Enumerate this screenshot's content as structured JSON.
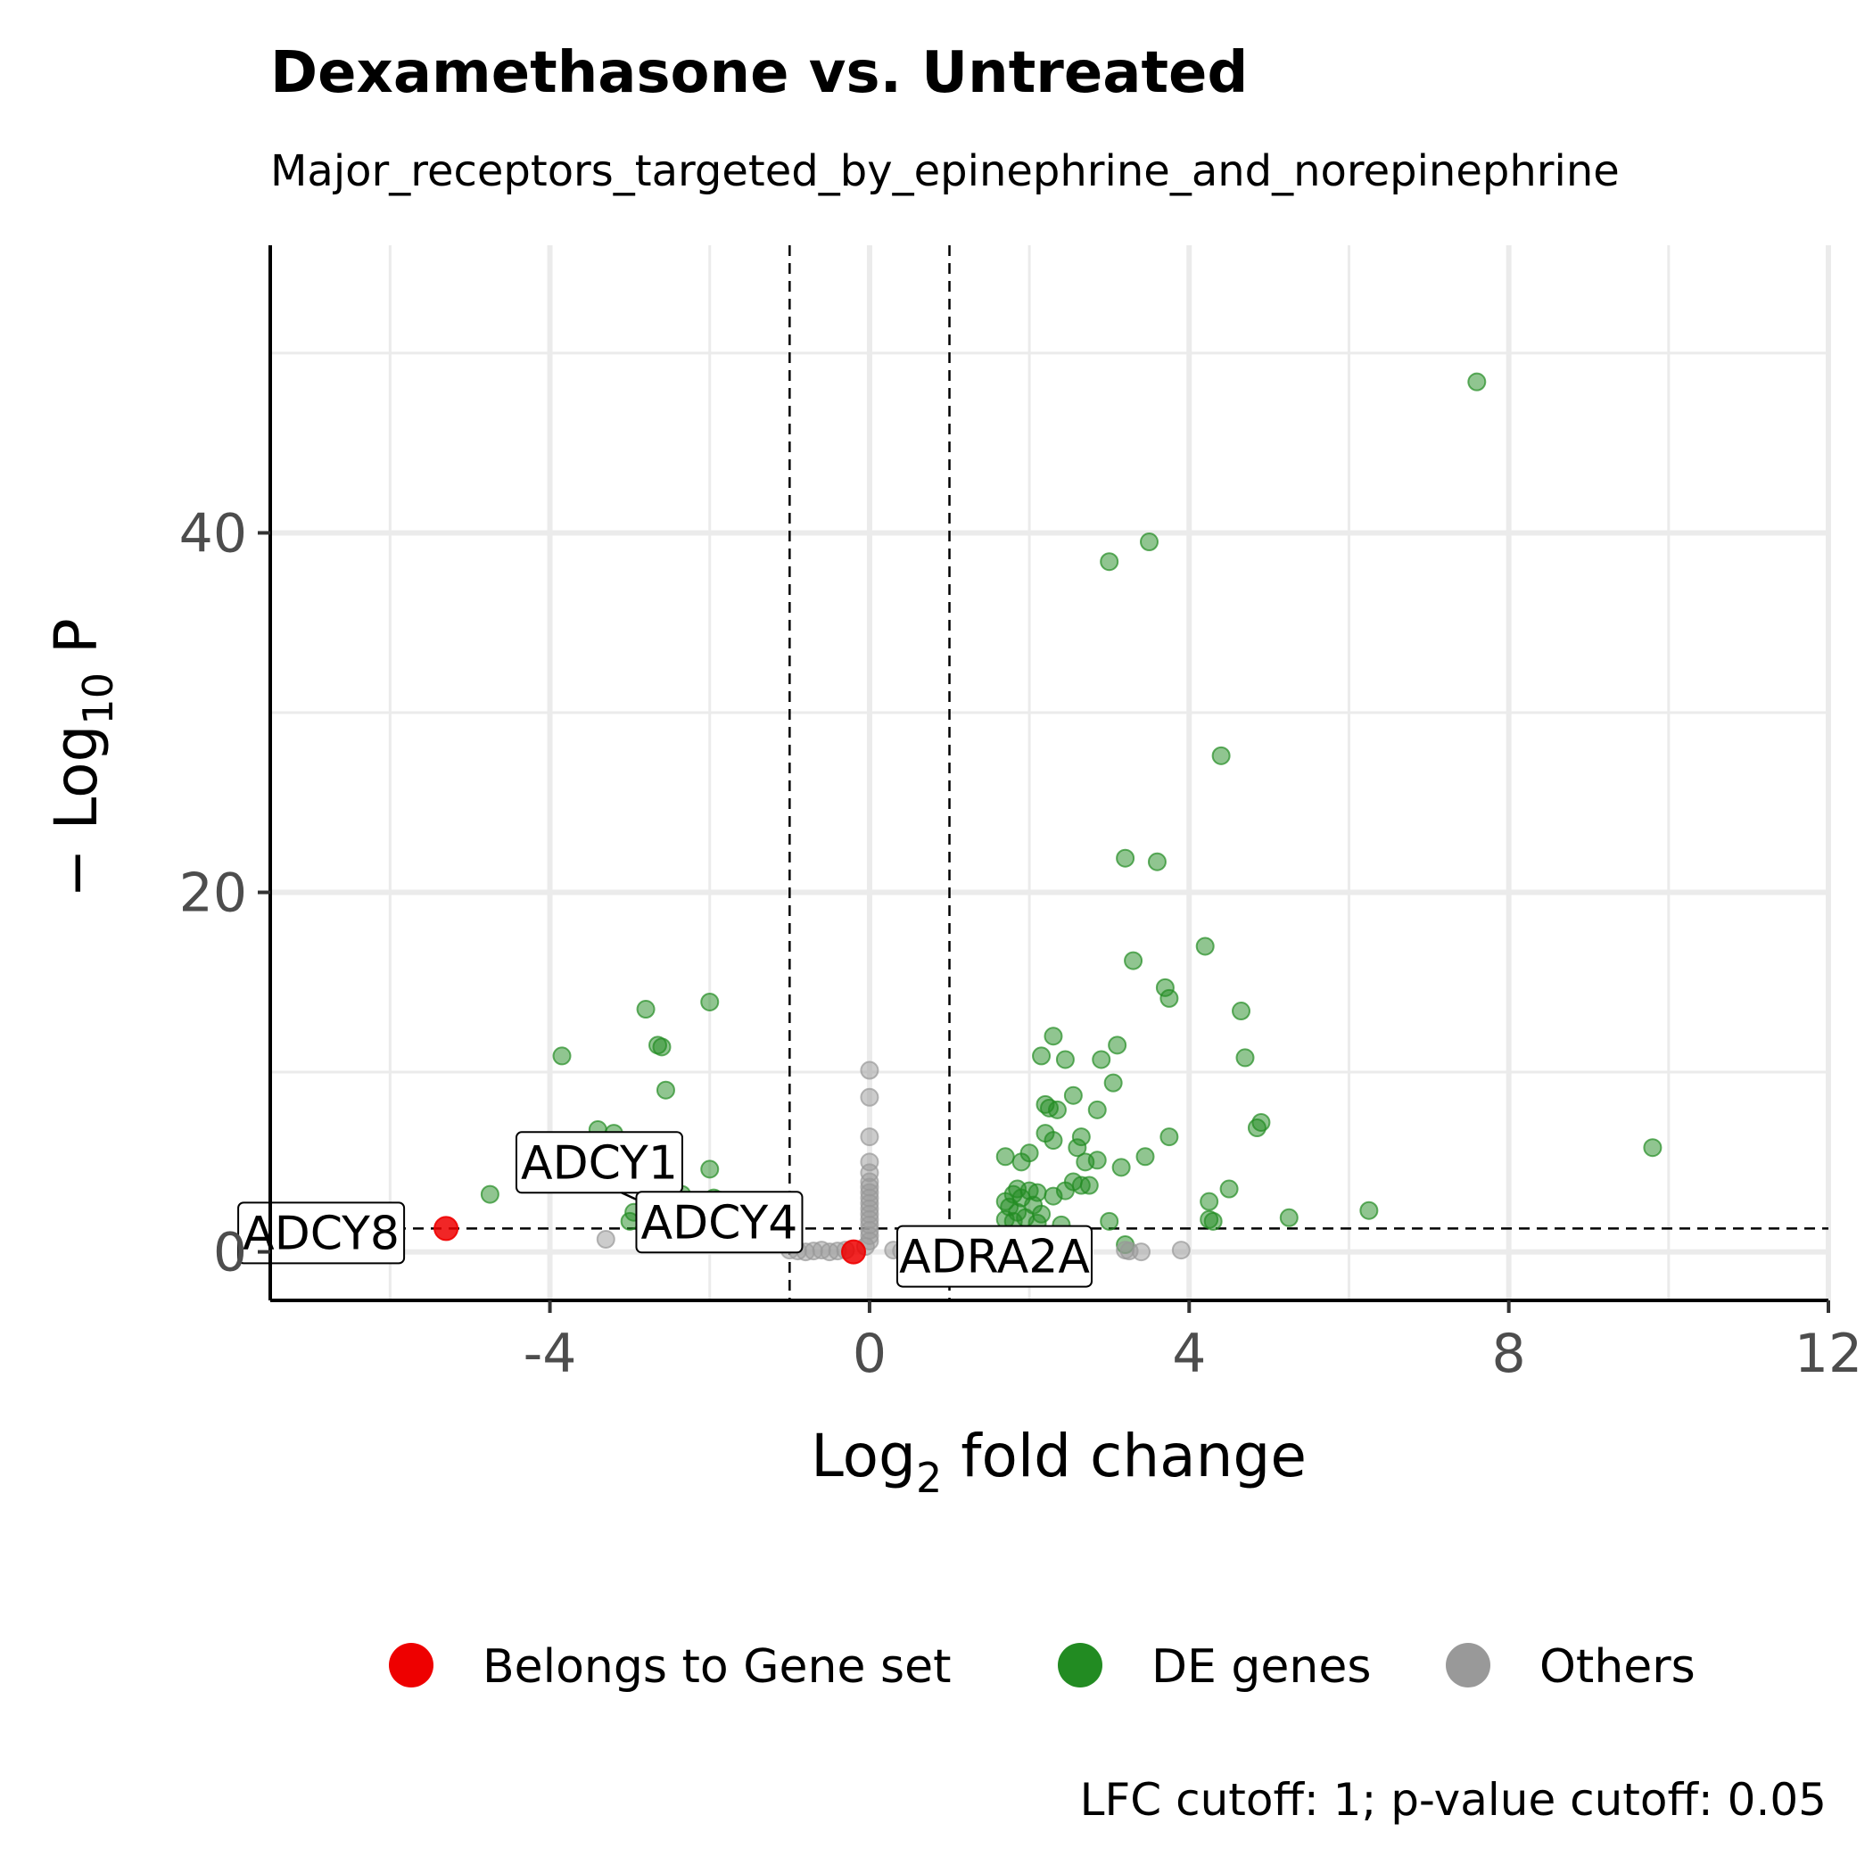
{
  "chart_data": {
    "type": "scatter",
    "title": "Dexamethasone vs. Untreated",
    "subtitle": "Major_receptors_targeted_by_epinephrine_and_norepinephrine",
    "xlabel_main": "Log",
    "xlabel_sub": "2",
    "xlabel_rest": " fold change",
    "ylabel_main": "− Log",
    "ylabel_sub": "10",
    "ylabel_rest": " P",
    "xlim": [
      -7.5,
      12
    ],
    "ylim": [
      -2.7,
      56
    ],
    "x_ticks": [
      -4,
      0,
      4,
      8,
      12
    ],
    "x_tick_labels": [
      "-4",
      "0",
      "4",
      "8",
      "12"
    ],
    "y_ticks": [
      0,
      20,
      40
    ],
    "y_tick_labels": [
      "0",
      "20",
      "40"
    ],
    "grid": true,
    "legend_position": "bottom",
    "lfc_cutoff": 1,
    "pvalue_cutoff": 0.05,
    "caption": "LFC cutoff: 1; p-value cutoff: 0.05",
    "colors": {
      "gene_set": "#ee0000",
      "de_genes": "#228b22",
      "others": "#999999",
      "grid": "#ebebeb",
      "axis": "#000000"
    },
    "legend": [
      {
        "key": "gene_set",
        "label": "Belongs to Gene set"
      },
      {
        "key": "de_genes",
        "label": "DE genes"
      },
      {
        "key": "others",
        "label": "Others"
      }
    ],
    "series": [
      {
        "key": "de_genes",
        "points": [
          [
            7.6,
            48.4
          ],
          [
            3.5,
            39.5
          ],
          [
            3.0,
            38.4
          ],
          [
            4.4,
            27.6
          ],
          [
            3.2,
            21.9
          ],
          [
            3.6,
            21.7
          ],
          [
            4.2,
            17.0
          ],
          [
            3.3,
            16.2
          ],
          [
            3.7,
            14.7
          ],
          [
            3.75,
            14.1
          ],
          [
            4.65,
            13.4
          ],
          [
            4.7,
            10.8
          ],
          [
            4.9,
            7.2
          ],
          [
            4.85,
            6.9
          ],
          [
            9.8,
            5.8
          ],
          [
            6.25,
            2.3
          ],
          [
            5.25,
            1.9
          ],
          [
            4.5,
            3.5
          ],
          [
            4.25,
            2.8
          ],
          [
            4.25,
            1.8
          ],
          [
            4.3,
            1.7
          ],
          [
            2.3,
            12.0
          ],
          [
            3.1,
            11.5
          ],
          [
            2.15,
            10.9
          ],
          [
            2.45,
            10.7
          ],
          [
            2.9,
            10.7
          ],
          [
            3.05,
            9.4
          ],
          [
            2.55,
            8.7
          ],
          [
            2.2,
            8.2
          ],
          [
            2.35,
            7.9
          ],
          [
            2.25,
            8.0
          ],
          [
            2.85,
            7.9
          ],
          [
            3.75,
            6.4
          ],
          [
            2.2,
            6.6
          ],
          [
            2.3,
            6.2
          ],
          [
            2.65,
            6.4
          ],
          [
            2.6,
            5.8
          ],
          [
            2.0,
            5.5
          ],
          [
            2.7,
            5.0
          ],
          [
            2.85,
            5.1
          ],
          [
            3.45,
            5.3
          ],
          [
            1.7,
            5.3
          ],
          [
            1.9,
            5.0
          ],
          [
            3.15,
            4.7
          ],
          [
            2.55,
            3.9
          ],
          [
            2.65,
            3.7
          ],
          [
            2.75,
            3.7
          ],
          [
            2.45,
            3.4
          ],
          [
            2.1,
            3.3
          ],
          [
            2.3,
            3.1
          ],
          [
            1.85,
            3.5
          ],
          [
            2.0,
            3.4
          ],
          [
            1.8,
            3.2
          ],
          [
            1.9,
            3.0
          ],
          [
            1.7,
            2.8
          ],
          [
            2.05,
            2.6
          ],
          [
            1.75,
            2.5
          ],
          [
            1.85,
            2.2
          ],
          [
            2.15,
            2.1
          ],
          [
            1.95,
            1.9
          ],
          [
            1.7,
            1.8
          ],
          [
            1.8,
            1.7
          ],
          [
            2.1,
            1.6
          ],
          [
            2.4,
            1.5
          ],
          [
            3.0,
            1.7
          ],
          [
            3.2,
            0.4
          ],
          [
            -2.0,
            13.9
          ],
          [
            -2.8,
            13.5
          ],
          [
            -2.65,
            11.5
          ],
          [
            -2.6,
            11.4
          ],
          [
            -3.85,
            10.9
          ],
          [
            -2.55,
            9.0
          ],
          [
            -3.4,
            6.8
          ],
          [
            -3.2,
            6.6
          ],
          [
            -2.0,
            4.6
          ],
          [
            -4.75,
            3.2
          ],
          [
            -1.95,
            3.0
          ],
          [
            -1.9,
            2.9
          ],
          [
            -1.75,
            2.6
          ],
          [
            -1.7,
            2.4
          ],
          [
            -2.3,
            2.5
          ],
          [
            -2.95,
            2.2
          ],
          [
            -2.75,
            2.3
          ],
          [
            -2.45,
            1.9
          ],
          [
            -2.15,
            2.0
          ],
          [
            -1.85,
            1.8
          ],
          [
            -3.0,
            1.7
          ],
          [
            -2.35,
            3.2
          ],
          [
            -2.1,
            1.7
          ]
        ]
      },
      {
        "key": "others",
        "points": [
          [
            0.0,
            10.1
          ],
          [
            0.0,
            8.6
          ],
          [
            0.0,
            6.4
          ],
          [
            0.0,
            5.0
          ],
          [
            0.0,
            4.4
          ],
          [
            0.0,
            3.9
          ],
          [
            0.0,
            3.6
          ],
          [
            0.0,
            3.3
          ],
          [
            0.0,
            3.0
          ],
          [
            0.0,
            2.7
          ],
          [
            0.0,
            2.4
          ],
          [
            0.0,
            2.1
          ],
          [
            0.0,
            1.8
          ],
          [
            0.0,
            1.5
          ],
          [
            0.0,
            1.2
          ],
          [
            0.0,
            0.9
          ],
          [
            0.0,
            0.6
          ],
          [
            -0.05,
            0.3
          ],
          [
            3.2,
            0.1
          ],
          [
            3.25,
            0.05
          ],
          [
            3.4,
            0.0
          ],
          [
            3.9,
            0.1
          ],
          [
            -3.3,
            0.7
          ],
          [
            -1.0,
            0.1
          ],
          [
            -0.9,
            0.05
          ],
          [
            -0.8,
            0.0
          ],
          [
            -0.7,
            0.05
          ],
          [
            -0.6,
            0.1
          ],
          [
            -0.5,
            0.0
          ],
          [
            -0.4,
            0.05
          ],
          [
            -0.3,
            0.1
          ],
          [
            0.3,
            0.1
          ],
          [
            0.4,
            0.05
          ],
          [
            -2.6,
            0.9
          ]
        ]
      },
      {
        "key": "gene_set",
        "points": [
          [
            -5.3,
            1.3
          ],
          [
            -2.6,
            2.0
          ],
          [
            -2.55,
            1.9
          ],
          [
            -0.2,
            0.0
          ]
        ]
      }
    ],
    "annotations": [
      {
        "gene": "ADCY1",
        "x": -2.6,
        "y": 2.0
      },
      {
        "gene": "ADCY8",
        "x": -5.3,
        "y": 1.3
      },
      {
        "gene": "ADCY4",
        "x": -2.55,
        "y": 1.9
      },
      {
        "gene": "ADRA2A",
        "x": -0.2,
        "y": 0.0
      }
    ]
  }
}
